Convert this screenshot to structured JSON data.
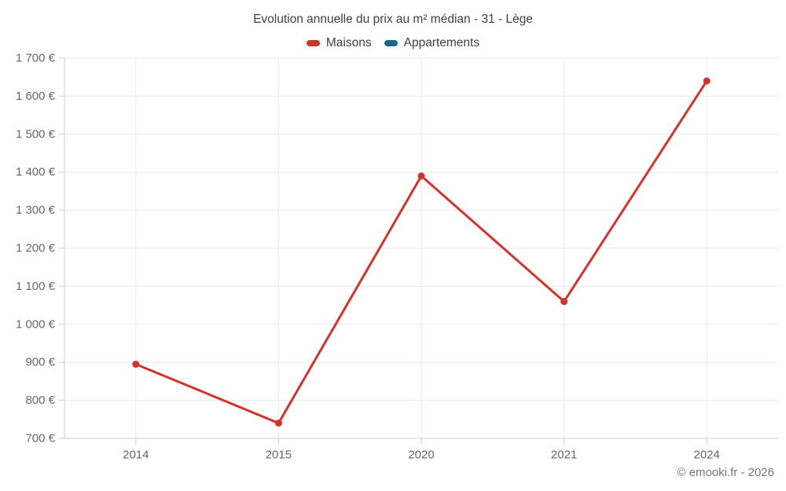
{
  "title": "Evolution annuelle du prix au m² médian - 31 - Lège",
  "legend": [
    {
      "label": "Maisons",
      "color": "#d7312d"
    },
    {
      "label": "Appartements",
      "color": "#17678f"
    }
  ],
  "footer": "© emooki.fr - 2026",
  "colors": {
    "grid": "#e8e8e8",
    "axis": "#cccccc",
    "tick_label": "#666666",
    "title_text": "#3f3f3f"
  },
  "chart_data": {
    "type": "line",
    "title": "Evolution annuelle du prix au m² médian - 31 - Lège",
    "categories": [
      "2014",
      "2015",
      "2020",
      "2021",
      "2024"
    ],
    "series": [
      {
        "name": "Maisons",
        "color": "#d7312d",
        "values": [
          895,
          740,
          1390,
          1060,
          1640
        ]
      },
      {
        "name": "Appartements",
        "color": "#17678f",
        "values": []
      }
    ],
    "xlabel": "",
    "ylabel": "",
    "ytick_format": "{value} €",
    "ylim": [
      700,
      1700
    ],
    "ytick_step": 100,
    "grid": true,
    "legend_position": "top",
    "marker_radius": 4.5,
    "line_width": 3
  }
}
